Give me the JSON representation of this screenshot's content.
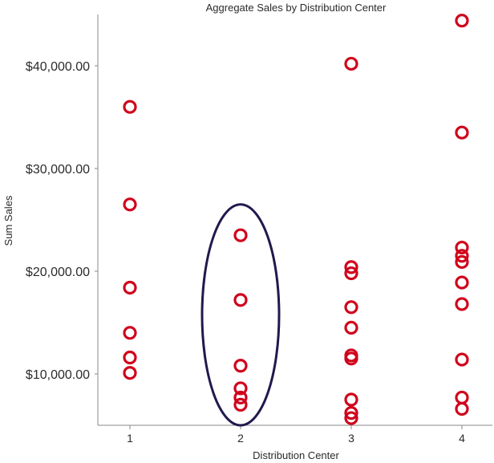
{
  "chart_data": {
    "type": "scatter",
    "title": "Aggregate Sales by Distribution Center",
    "xlabel": "Distribution Center",
    "ylabel": "Sum Sales",
    "categories": [
      "1",
      "2",
      "3",
      "4"
    ],
    "y_ticks": [
      10000,
      20000,
      30000,
      40000
    ],
    "y_tick_labels": [
      "$10,000.00",
      "$20,000.00",
      "$30,000.00",
      "$40,000.00"
    ],
    "ylim": [
      5000,
      45000
    ],
    "grid": false,
    "marker_color": "#d0021b",
    "annotation_color": "#1f1a4d",
    "points": [
      {
        "x": "1",
        "y": 36000
      },
      {
        "x": "1",
        "y": 26500
      },
      {
        "x": "1",
        "y": 18400
      },
      {
        "x": "1",
        "y": 14000
      },
      {
        "x": "1",
        "y": 11600
      },
      {
        "x": "1",
        "y": 10100
      },
      {
        "x": "2",
        "y": 23500
      },
      {
        "x": "2",
        "y": 17200
      },
      {
        "x": "2",
        "y": 10800
      },
      {
        "x": "2",
        "y": 8600
      },
      {
        "x": "2",
        "y": 7700
      },
      {
        "x": "2",
        "y": 7000
      },
      {
        "x": "3",
        "y": 40200
      },
      {
        "x": "3",
        "y": 20400
      },
      {
        "x": "3",
        "y": 19800
      },
      {
        "x": "3",
        "y": 16500
      },
      {
        "x": "3",
        "y": 14500
      },
      {
        "x": "3",
        "y": 11800
      },
      {
        "x": "3",
        "y": 11500
      },
      {
        "x": "3",
        "y": 7500
      },
      {
        "x": "3",
        "y": 6200
      },
      {
        "x": "3",
        "y": 5700
      },
      {
        "x": "4",
        "y": 44400
      },
      {
        "x": "4",
        "y": 33500
      },
      {
        "x": "4",
        "y": 22300
      },
      {
        "x": "4",
        "y": 21500
      },
      {
        "x": "4",
        "y": 20900
      },
      {
        "x": "4",
        "y": 18900
      },
      {
        "x": "4",
        "y": 16800
      },
      {
        "x": "4",
        "y": 11400
      },
      {
        "x": "4",
        "y": 7700
      },
      {
        "x": "4",
        "y": 6600
      }
    ],
    "annotations": [
      {
        "type": "ellipse",
        "category": "2",
        "y_min": 5000,
        "y_max": 26500
      }
    ]
  }
}
